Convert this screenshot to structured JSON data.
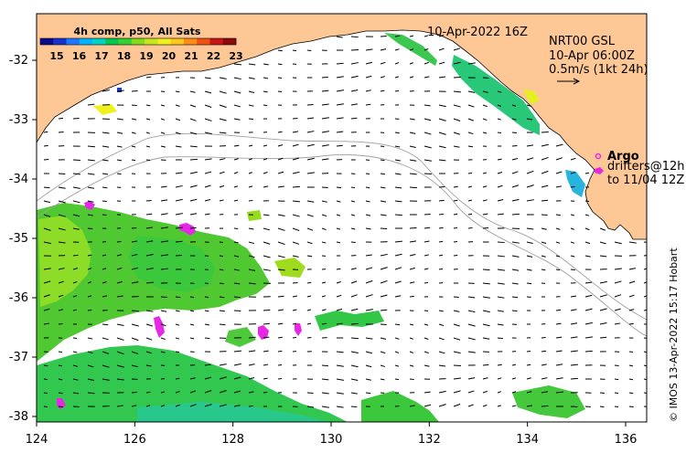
{
  "colorbar": {
    "title": "4h comp, p50, All Sats",
    "ticks": [
      "15",
      "16",
      "17",
      "18",
      "19",
      "20",
      "21",
      "22",
      "23"
    ],
    "colors": [
      "#0a0a8c",
      "#1432d2",
      "#1e78ff",
      "#00b4ff",
      "#00d2c8",
      "#00c850",
      "#32d232",
      "#82dc1e",
      "#c8e61e",
      "#f0f01e",
      "#ffc81e",
      "#ff8c14",
      "#f05014",
      "#c81414",
      "#8c0a0a"
    ]
  },
  "header": {
    "datetime": "10-Apr-2022 16Z",
    "gsl_line1": "NRT00 GSL",
    "gsl_line2": "10-Apr 06:00Z",
    "gsl_line3": "0.5m/s (1kt 24h)"
  },
  "legend": {
    "argo": "Argo",
    "drifters_line1": "drifters@12h",
    "drifters_line2": "to 11/04 12Z"
  },
  "credit": "© IMOS 13-Apr-2022 15:17 Hobart",
  "axes": {
    "x_ticks": [
      "124",
      "126",
      "128",
      "130",
      "132",
      "134",
      "136"
    ],
    "y_ticks": [
      "-32",
      "-33",
      "-34",
      "-35",
      "-36",
      "-37",
      "-38"
    ]
  },
  "colors": {
    "land": "#fdc896",
    "sea": "#ffffff",
    "arrow": "#000000",
    "isobath": "#a0a0a0",
    "argo": "#e628e6"
  }
}
